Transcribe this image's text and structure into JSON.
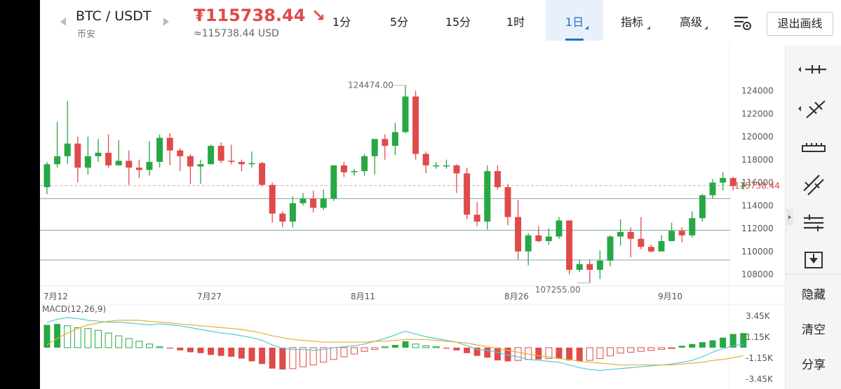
{
  "header": {
    "pair": "BTC / USDT",
    "exchange": "币安",
    "price": "₮115738.44 ↘",
    "price_usd": "≈115738.44 USD",
    "tabs": [
      {
        "label": "1分",
        "active": false
      },
      {
        "label": "5分",
        "active": false
      },
      {
        "label": "15分",
        "active": false
      },
      {
        "label": "1时",
        "active": false
      },
      {
        "label": "1日",
        "active": true
      },
      {
        "label": "指标",
        "active": false
      },
      {
        "label": "高级",
        "active": false
      }
    ],
    "exit_label": "退出画线"
  },
  "sidebar": {
    "tools": [
      "horizontal-line-icon",
      "trend-line-icon",
      "ruler-icon",
      "parallel-lines-icon",
      "price-channel-icon",
      "save-template-icon"
    ],
    "hide_label": "隐藏",
    "clear_label": "清空",
    "share_label": "分享"
  },
  "colors": {
    "up": "#27a844",
    "down": "#e04a4a",
    "accent": "#1d6fd1",
    "macd_line": "#56c8d8",
    "signal_line": "#e6b031"
  },
  "chart_data": {
    "type": "candlestick",
    "price_axis": [
      "124000",
      "122000",
      "120000",
      "118000",
      "116000",
      "114000",
      "112000",
      "110000",
      "108000"
    ],
    "current_price_label": "115738.44",
    "current_price": 115738.44,
    "high_label": "124474.00",
    "low_label": "107255.00",
    "dates": [
      "7月12",
      "7月27",
      "8月11",
      "8月26",
      "9月10"
    ],
    "horizontal_levels": [
      114600,
      111850,
      109250
    ],
    "candles": [
      [
        115600,
        117600,
        117800,
        115000
      ],
      [
        117600,
        118300,
        121300,
        117300
      ],
      [
        118300,
        119400,
        123100,
        117600
      ],
      [
        119400,
        117300,
        120000,
        116000
      ],
      [
        117300,
        118300,
        120000,
        116700
      ],
      [
        118300,
        118600,
        119800,
        117800
      ],
      [
        118600,
        117500,
        120200,
        117300
      ],
      [
        117500,
        117900,
        119700,
        117500
      ],
      [
        117900,
        117300,
        118800,
        115800
      ],
      [
        117300,
        117100,
        118000,
        116400
      ],
      [
        117100,
        117800,
        119600,
        116600
      ],
      [
        117800,
        119900,
        120200,
        117300
      ],
      [
        119900,
        118800,
        120300,
        117500
      ],
      [
        118800,
        118300,
        119000,
        117000
      ],
      [
        118300,
        117400,
        118500,
        115900
      ],
      [
        117400,
        117600,
        118000,
        115900
      ],
      [
        117600,
        119200,
        119300,
        117600
      ],
      [
        119200,
        117900,
        119500,
        117700
      ],
      [
        117900,
        117800,
        119300,
        117600
      ],
      [
        117800,
        117600,
        118000,
        117000
      ],
      [
        117600,
        117700,
        118700,
        117300
      ],
      [
        117700,
        115800,
        117800,
        115700
      ],
      [
        115800,
        113300,
        116000,
        112500
      ],
      [
        113300,
        112600,
        113500,
        112100
      ],
      [
        112600,
        114200,
        114800,
        112100
      ],
      [
        114200,
        114600,
        115100,
        114000
      ],
      [
        114600,
        113800,
        115300,
        113400
      ],
      [
        113800,
        114600,
        115400,
        113600
      ],
      [
        114600,
        117500,
        117500,
        114400
      ],
      [
        117500,
        116900,
        117800,
        116500
      ],
      [
        116900,
        117000,
        117200,
        116600
      ],
      [
        117000,
        118300,
        118500,
        116600
      ],
      [
        118300,
        119800,
        119800,
        116700
      ],
      [
        119800,
        119200,
        120200,
        118000
      ],
      [
        119200,
        120400,
        121200,
        118400
      ],
      [
        120400,
        123500,
        124474,
        120300
      ],
      [
        123500,
        118500,
        124000,
        118000
      ],
      [
        118500,
        117500,
        118700,
        116800
      ],
      [
        117500,
        117500,
        117800,
        117200
      ],
      [
        117500,
        117500,
        118000,
        117200
      ],
      [
        117500,
        116800,
        117600,
        115100
      ],
      [
        116800,
        113200,
        117300,
        112800
      ],
      [
        113200,
        112600,
        114300,
        112200
      ],
      [
        112600,
        117000,
        117500,
        111900
      ],
      [
        117000,
        115600,
        117500,
        115400
      ],
      [
        115600,
        113000,
        115900,
        112300
      ],
      [
        113000,
        110000,
        114500,
        109300
      ],
      [
        110000,
        111400,
        111600,
        108800
      ],
      [
        111400,
        110900,
        112200,
        110800
      ],
      [
        110900,
        111300,
        112000,
        110600
      ],
      [
        111300,
        112700,
        113000,
        111100
      ],
      [
        112700,
        108400,
        112700,
        108000
      ],
      [
        108400,
        108900,
        109300,
        108200
      ],
      [
        108900,
        108400,
        109300,
        107255
      ],
      [
        108400,
        109200,
        110100,
        107600
      ],
      [
        109200,
        111300,
        111400,
        108700
      ],
      [
        111300,
        111700,
        112800,
        110500
      ],
      [
        111700,
        111100,
        112100,
        109500
      ],
      [
        111100,
        110400,
        113000,
        110200
      ],
      [
        110400,
        110000,
        110600,
        109900
      ],
      [
        110000,
        110900,
        111400,
        110000
      ],
      [
        110900,
        111800,
        112500,
        111100
      ],
      [
        111800,
        111400,
        112100,
        110800
      ],
      [
        111400,
        112900,
        113500,
        111200
      ],
      [
        112900,
        114900,
        115000,
        112600
      ],
      [
        114900,
        116000,
        116300,
        114600
      ],
      [
        116000,
        116400,
        116900,
        115300
      ],
      [
        116400,
        115700,
        116500,
        115300
      ],
      [
        115700,
        115738.44,
        116000,
        115400
      ]
    ],
    "macd": {
      "label": "MACD(12,26,9)",
      "axis": [
        "3.45K",
        "1.15K",
        "-1.15K",
        "-3.45K"
      ],
      "hist": [
        2.5,
        2.6,
        2.4,
        2.2,
        2.1,
        1.9,
        1.6,
        1.3,
        1.0,
        0.7,
        0.4,
        0.1,
        -0.1,
        -0.3,
        -0.5,
        -0.6,
        -0.8,
        -0.9,
        -1.0,
        -1.2,
        -1.5,
        -1.8,
        -2.3,
        -2.4,
        -2.3,
        -2.1,
        -1.9,
        -1.6,
        -1.3,
        -1.0,
        -0.7,
        -0.4,
        -0.2,
        0.1,
        0.3,
        0.7,
        0.4,
        0.2,
        0.1,
        -0.1,
        -0.3,
        -0.6,
        -0.9,
        -1.1,
        -1.4,
        -1.5,
        -1.4,
        -1.3,
        -1.3,
        -1.2,
        -1.2,
        -1.4,
        -1.5,
        -1.4,
        -1.2,
        -0.9,
        -0.6,
        -0.5,
        -0.4,
        -0.3,
        -0.2,
        -0.1,
        0.2,
        0.4,
        0.6,
        0.8,
        1.1,
        1.5,
        1.6
      ],
      "macd_line": [
        2.8,
        3.1,
        3.3,
        3.2,
        3.0,
        2.9,
        2.8,
        2.8,
        2.7,
        2.6,
        2.5,
        2.6,
        2.5,
        2.4,
        2.2,
        2.0,
        1.8,
        1.6,
        1.5,
        1.3,
        1.1,
        0.8,
        0.3,
        -0.1,
        -0.2,
        -0.2,
        -0.3,
        -0.2,
        0.0,
        0.1,
        0.2,
        0.4,
        0.7,
        1.0,
        1.4,
        1.8,
        1.5,
        1.2,
        1.0,
        0.8,
        0.6,
        0.2,
        -0.2,
        -0.3,
        -0.5,
        -0.8,
        -1.0,
        -1.3,
        -1.4,
        -1.5,
        -1.6,
        -1.9,
        -2.2,
        -2.4,
        -2.5,
        -2.4,
        -2.3,
        -2.2,
        -2.1,
        -2.0,
        -1.9,
        -1.8,
        -1.6,
        -1.4,
        -1.0,
        -0.5,
        -0.1,
        0.2,
        0.4
      ],
      "signal_line": [
        0.3,
        1.0,
        1.6,
        2.1,
        2.5,
        2.7,
        2.9,
        3.0,
        3.0,
        3.0,
        2.9,
        2.8,
        2.7,
        2.6,
        2.5,
        2.4,
        2.3,
        2.2,
        2.1,
        2.0,
        1.8,
        1.6,
        1.3,
        1.1,
        0.9,
        0.8,
        0.7,
        0.6,
        0.6,
        0.6,
        0.6,
        0.6,
        0.7,
        0.7,
        0.8,
        0.9,
        0.9,
        0.9,
        0.8,
        0.7,
        0.6,
        0.5,
        0.3,
        0.1,
        -0.1,
        -0.3,
        -0.5,
        -0.7,
        -0.9,
        -1.0,
        -1.2,
        -1.3,
        -1.5,
        -1.6,
        -1.7,
        -1.8,
        -1.9,
        -1.9,
        -1.9,
        -1.9,
        -1.9,
        -1.9,
        -1.8,
        -1.7,
        -1.6,
        -1.4,
        -1.3,
        -1.1,
        -0.9
      ]
    }
  }
}
